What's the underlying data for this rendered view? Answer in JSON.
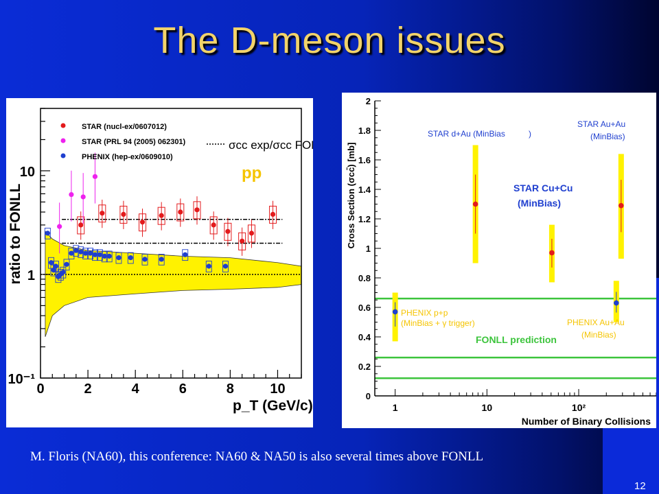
{
  "slide": {
    "title": "The D-meson issues",
    "footer": "M. Floris (NA60), this conference: NA60 & NA50 is also several times above FONLL",
    "page_number": "12"
  },
  "chart_data": [
    {
      "type": "scatter",
      "xlabel": "p_T (GeV/c)",
      "ylabel": "ratio to FONLL",
      "xlim": [
        0,
        11
      ],
      "ylim": [
        0.1,
        40
      ],
      "yscale": "log",
      "xticks": [
        "0",
        "2",
        "4",
        "6",
        "8",
        "10"
      ],
      "yticks": [
        "10⁻¹",
        "1",
        "10"
      ],
      "label_pp": "pp",
      "legend_formula": "σcc exp/σcc FONLL",
      "legend": [
        {
          "name": "STAR (nucl-ex/0607012)",
          "color": "#e31a1c"
        },
        {
          "name": "STAR (PRL 94 (2005) 062301)",
          "color": "#ee22ee"
        },
        {
          "name": "PHENIX (hep-ex/0609010)",
          "color": "#1f3fcf"
        }
      ],
      "series": [
        {
          "name": "STAR (nucl-ex/0607012)",
          "color": "#e31a1c",
          "x": [
            1.7,
            2.6,
            3.5,
            4.3,
            5.1,
            5.9,
            6.6,
            7.3,
            7.9,
            8.5,
            8.9,
            9.8
          ],
          "y": [
            3.0,
            3.9,
            3.8,
            3.2,
            3.7,
            4.0,
            4.2,
            3.0,
            2.6,
            2.1,
            2.5,
            3.8
          ]
        },
        {
          "name": "STAR (PRL 94 (2005) 062301)",
          "color": "#ee22ee",
          "x": [
            0.8,
            1.3,
            1.8,
            2.3
          ],
          "y": [
            2.9,
            5.9,
            5.6,
            8.8
          ]
        },
        {
          "name": "PHENIX (hep-ex/0609010)",
          "color": "#1f3fcf",
          "x": [
            0.3,
            0.45,
            0.55,
            0.65,
            0.75,
            0.85,
            0.95,
            1.1,
            1.3,
            1.5,
            1.7,
            1.9,
            2.1,
            2.3,
            2.5,
            2.7,
            2.9,
            3.3,
            3.8,
            4.4,
            5.1,
            6.1,
            7.1,
            7.8
          ],
          "y": [
            2.5,
            1.3,
            1.1,
            1.2,
            0.95,
            1.0,
            1.05,
            1.25,
            1.6,
            1.7,
            1.65,
            1.6,
            1.6,
            1.55,
            1.55,
            1.5,
            1.5,
            1.45,
            1.45,
            1.4,
            1.4,
            1.55,
            1.2,
            1.2
          ]
        }
      ],
      "reference_lines": [
        1,
        2.0,
        3.4
      ],
      "band_lower": [
        [
          0.2,
          0.25
        ],
        [
          0.5,
          0.4
        ],
        [
          1,
          0.5
        ],
        [
          2,
          0.6
        ],
        [
          4,
          0.65
        ],
        [
          6,
          0.7
        ],
        [
          8,
          0.72
        ],
        [
          10,
          0.75
        ],
        [
          11,
          0.8
        ]
      ],
      "band_upper": [
        [
          0.2,
          2.6
        ],
        [
          0.5,
          2.2
        ],
        [
          1,
          1.9
        ],
        [
          2,
          1.7
        ],
        [
          4,
          1.6
        ],
        [
          6,
          1.5
        ],
        [
          8,
          1.45
        ],
        [
          10,
          1.3
        ],
        [
          11,
          1.2
        ]
      ]
    },
    {
      "type": "scatter",
      "xlabel": "Number of Binary Collisions",
      "ylabel": "Cross Section (σcc̄) [mb]",
      "xscale": "log",
      "xlim": [
        0.6,
        700
      ],
      "ylim": [
        0,
        2
      ],
      "yticks": [
        "0",
        "0.2",
        "0.4",
        "0.6",
        "0.8",
        "1",
        "1.2",
        "1.4",
        "1.6",
        "1.8",
        "2"
      ],
      "xticks": [
        "1",
        "10",
        "10²"
      ],
      "fonll_label": "FONLL prediction",
      "fonll_lines": [
        0.66,
        0.26,
        0.12
      ],
      "points": [
        {
          "label_line1": "PHENIX p+p",
          "label_line2": "(MinBias + γ trigger)",
          "x": 1,
          "y": 0.57,
          "color": "#1f3fcf",
          "band_low": 0.37,
          "band_high": 0.7
        },
        {
          "label_line1": "STAR d+Au (MinBias",
          "label_line2": ")",
          "x": 7.5,
          "y": 1.3,
          "color": "#e31a1c",
          "band_low": 0.9,
          "band_high": 1.7
        },
        {
          "label_line1": "STAR Cu+Cu",
          "label_line2": "(MinBias)",
          "x": 51,
          "y": 0.97,
          "color": "#e31a1c",
          "band_low": 0.77,
          "band_high": 1.16
        },
        {
          "label_line1": "STAR Au+Au",
          "label_line2": "(MinBias)",
          "x": 290,
          "y": 1.29,
          "color": "#e31a1c",
          "band_low": 0.93,
          "band_high": 1.64
        },
        {
          "label_line1": "PHENIX Au+Au",
          "label_line2": "(MinBias)",
          "x": 257,
          "y": 0.63,
          "color": "#1f3fcf",
          "band_low": 0.5,
          "band_high": 0.78
        }
      ]
    }
  ]
}
